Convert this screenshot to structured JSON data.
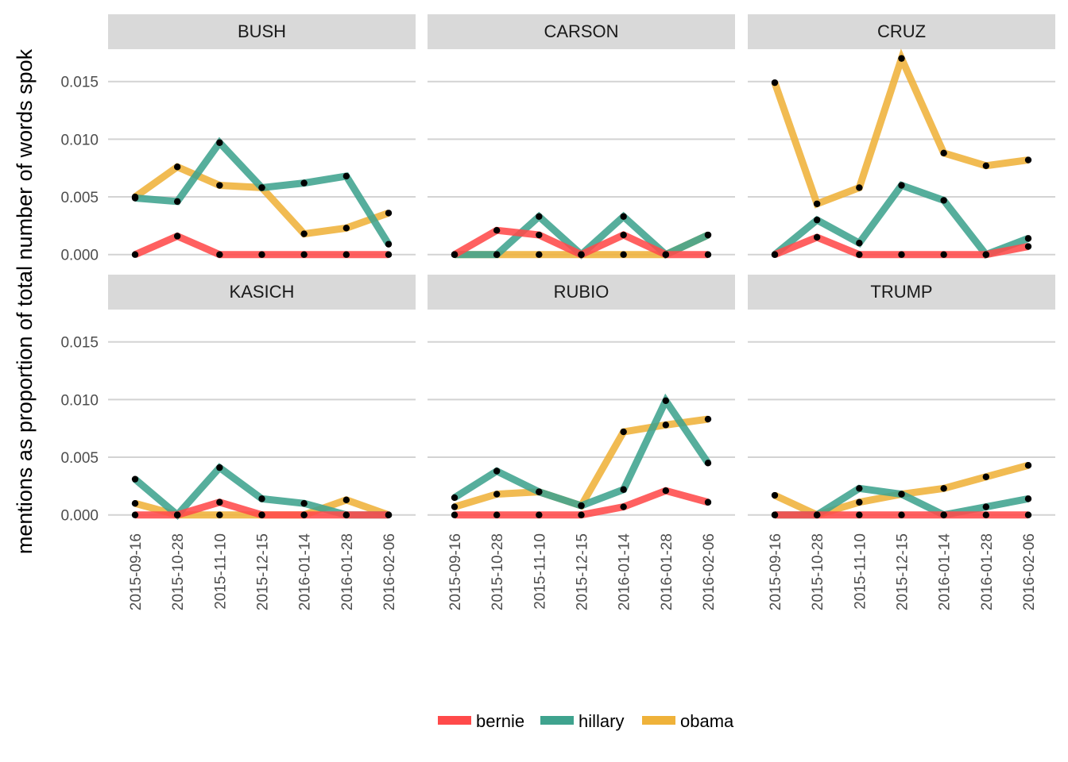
{
  "chart_data": {
    "type": "line",
    "ylabel": "mentions as proportion of total number of words spok",
    "ylim": [
      -0.0005,
      0.0178
    ],
    "y_ticks": [
      0,
      0.005,
      0.01,
      0.015
    ],
    "y_tick_labels": [
      "0.000",
      "0.005",
      "0.010",
      "0.015"
    ],
    "x": [
      "2015-09-16",
      "2015-10-28",
      "2015-11-10",
      "2015-12-15",
      "2016-01-14",
      "2016-01-28",
      "2016-02-06"
    ],
    "grid": true,
    "legend_position": "bottom",
    "series_colors": {
      "bernie": "#FF4A4A",
      "hillary": "#3FA38E",
      "obama": "#EFB23A"
    },
    "legend": [
      {
        "name": "bernie",
        "color": "#FF4A4A"
      },
      {
        "name": "hillary",
        "color": "#3FA38E"
      },
      {
        "name": "obama",
        "color": "#EFB23A"
      }
    ],
    "panels": [
      {
        "title": "BUSH",
        "series": [
          {
            "name": "bernie",
            "values": [
              0.0,
              0.0016,
              0.0,
              0.0,
              0.0,
              0.0,
              0.0
            ]
          },
          {
            "name": "hillary",
            "values": [
              0.0049,
              0.0046,
              0.0097,
              0.0058,
              0.0062,
              0.0068,
              0.0009
            ]
          },
          {
            "name": "obama",
            "values": [
              0.005,
              0.0076,
              0.006,
              0.0058,
              0.0018,
              0.0023,
              0.0036
            ]
          }
        ]
      },
      {
        "title": "CARSON",
        "series": [
          {
            "name": "bernie",
            "values": [
              0.0,
              0.0021,
              0.0017,
              0.0,
              0.0017,
              0.0,
              0.0
            ]
          },
          {
            "name": "hillary",
            "values": [
              0.0,
              0.0,
              0.0033,
              0.0,
              0.0033,
              0.0,
              0.0017
            ]
          },
          {
            "name": "obama",
            "values": [
              0.0,
              0.0,
              0.0,
              0.0,
              0.0,
              0.0,
              0.0017
            ]
          }
        ]
      },
      {
        "title": "CRUZ",
        "series": [
          {
            "name": "bernie",
            "values": [
              0.0,
              0.0015,
              0.0,
              0.0,
              0.0,
              0.0,
              0.0007
            ]
          },
          {
            "name": "hillary",
            "values": [
              0.0,
              0.003,
              0.001,
              0.006,
              0.0047,
              0.0,
              0.0014
            ]
          },
          {
            "name": "obama",
            "values": [
              0.0149,
              0.0044,
              0.0058,
              0.017,
              0.0088,
              0.0077,
              0.0082
            ]
          }
        ]
      },
      {
        "title": "KASICH",
        "series": [
          {
            "name": "bernie",
            "values": [
              0.0,
              0.0,
              0.0011,
              0.0,
              0.0,
              0.0,
              0.0
            ]
          },
          {
            "name": "hillary",
            "values": [
              0.0031,
              0.0,
              0.0041,
              0.0014,
              0.001,
              0.0,
              0.0
            ]
          },
          {
            "name": "obama",
            "values": [
              0.001,
              0.0,
              0.0,
              0.0,
              0.0,
              0.0013,
              0.0
            ]
          }
        ]
      },
      {
        "title": "RUBIO",
        "series": [
          {
            "name": "bernie",
            "values": [
              0.0,
              0.0,
              0.0,
              0.0,
              0.0007,
              0.0021,
              0.0011
            ]
          },
          {
            "name": "hillary",
            "values": [
              0.0015,
              0.0038,
              0.002,
              0.0008,
              0.0022,
              0.0099,
              0.0045
            ]
          },
          {
            "name": "obama",
            "values": [
              0.0007,
              0.0018,
              0.002,
              0.0008,
              0.0072,
              0.0078,
              0.0083
            ]
          }
        ]
      },
      {
        "title": "TRUMP",
        "series": [
          {
            "name": "bernie",
            "values": [
              0.0,
              0.0,
              0.0,
              0.0,
              0.0,
              0.0,
              0.0
            ]
          },
          {
            "name": "hillary",
            "values": [
              0.0,
              0.0,
              0.0023,
              0.0018,
              0.0,
              0.0007,
              0.0014
            ]
          },
          {
            "name": "obama",
            "values": [
              0.0017,
              0.0,
              0.0011,
              0.0018,
              0.0023,
              0.0033,
              0.0043
            ]
          }
        ]
      }
    ]
  }
}
